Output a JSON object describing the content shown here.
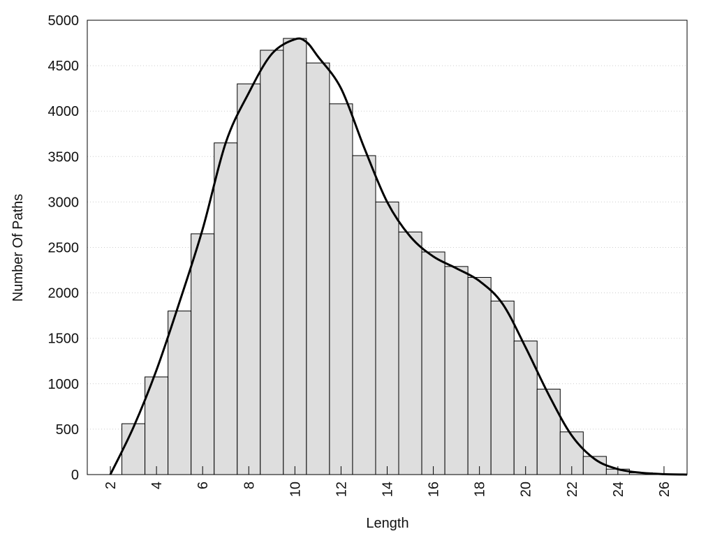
{
  "chart_data": {
    "type": "histogram",
    "xlabel": "Length",
    "ylabel": "Number Of Paths",
    "bins": [
      2.5,
      3.5,
      4.5,
      5.5,
      6.5,
      7.5,
      8.5,
      9.5,
      10.5,
      11.5,
      12.5,
      13.5,
      14.5,
      15.5,
      16.5,
      17.5,
      18.5,
      19.5,
      20.5,
      21.5,
      22.5,
      23.5,
      24.5,
      25.5,
      26.5
    ],
    "values": [
      560,
      1075,
      1800,
      2650,
      3650,
      4300,
      4670,
      4800,
      4530,
      4080,
      3510,
      3000,
      2670,
      2450,
      2290,
      2170,
      1910,
      1470,
      940,
      470,
      200,
      60,
      20,
      5
    ],
    "color": "#dedede",
    "line": {
      "color": "#000000",
      "x": [
        2,
        3,
        4,
        5,
        6,
        7,
        8,
        9,
        10,
        10.5,
        11,
        12,
        13,
        14,
        15,
        16,
        17,
        18,
        19,
        20,
        21,
        22,
        23,
        24,
        25,
        26,
        27
      ],
      "values": [
        0,
        520,
        1150,
        1900,
        2700,
        3650,
        4200,
        4630,
        4790,
        4760,
        4600,
        4250,
        3600,
        3000,
        2620,
        2400,
        2270,
        2130,
        1880,
        1400,
        880,
        430,
        170,
        60,
        20,
        5,
        0
      ]
    },
    "xlim": [
      1,
      27
    ],
    "ylim": [
      0,
      5000
    ],
    "xticks": [
      2,
      4,
      6,
      8,
      10,
      12,
      14,
      16,
      18,
      20,
      22,
      24,
      26
    ],
    "yticks": [
      0,
      500,
      1000,
      1500,
      2000,
      2500,
      3000,
      3500,
      4000,
      4500,
      5000
    ],
    "grid": true
  }
}
